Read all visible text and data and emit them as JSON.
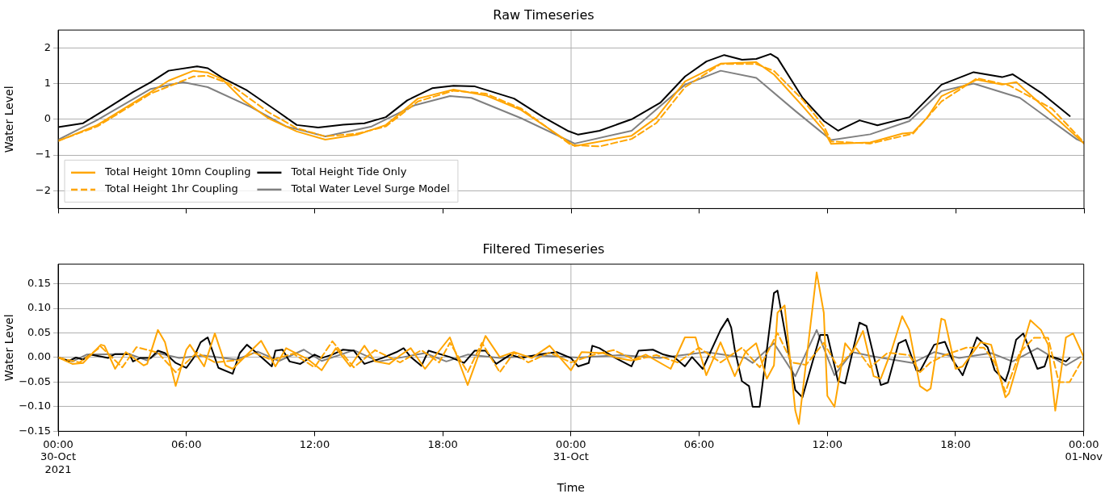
{
  "chart_data": [
    {
      "type": "line",
      "title": "Raw Timeseries",
      "ylabel": "Water Level",
      "xlim": [
        "2021-10-30T00:00",
        "2021-11-01T00:00"
      ],
      "ylim": [
        -2.5,
        2.5
      ],
      "xticks": [
        {
          "value": "2021-10-30T00:00",
          "label": null
        },
        {
          "value": "2021-10-30T06:00",
          "label": null
        },
        {
          "value": "2021-10-30T12:00",
          "label": null
        },
        {
          "value": "2021-10-30T18:00",
          "label": null
        },
        {
          "value": "2021-10-31T00:00",
          "label": null
        },
        {
          "value": "2021-10-31T06:00",
          "label": null
        },
        {
          "value": "2021-10-31T12:00",
          "label": null
        },
        {
          "value": "2021-10-31T18:00",
          "label": null
        },
        {
          "value": "2021-11-01T00:00",
          "label": null
        }
      ],
      "yticks": [
        {
          "value": -2,
          "label": "−2"
        },
        {
          "value": -1,
          "label": "−1"
        },
        0,
        1,
        2
      ],
      "tick_labels": "y",
      "grid": "y",
      "legend": "bottom left",
      "marker": "none",
      "ref_lines": [
        {
          "axis": "x",
          "value": "2021-10-31T00:00",
          "color": "#b0b0b0"
        }
      ],
      "series": [
        {
          "name": "Total Height 10mn Coupling",
          "color": "#ffa500",
          "line_style": "solid",
          "x": [
            "2021-10-30T00:00",
            "2021-10-30T01:50",
            "2021-10-30T04:20",
            "2021-10-30T05:10",
            "2021-10-30T06:20",
            "2021-10-30T07:00",
            "2021-10-30T07:40",
            "2021-10-30T08:40",
            "2021-10-30T09:50",
            "2021-10-30T11:10",
            "2021-10-30T12:30",
            "2021-10-30T14:00",
            "2021-10-30T15:20",
            "2021-10-30T16:50",
            "2021-10-30T18:30",
            "2021-10-30T20:00",
            "2021-10-30T21:40",
            "2021-10-31T00:10",
            "2021-10-31T02:50",
            "2021-10-31T04:00",
            "2021-10-31T05:20",
            "2021-10-31T07:00",
            "2021-10-31T08:40",
            "2021-10-31T09:30",
            "2021-10-31T10:50",
            "2021-10-31T11:50",
            "2021-10-31T12:10",
            "2021-10-31T14:00",
            "2021-10-31T15:30",
            "2021-10-31T16:00",
            "2021-10-31T16:40",
            "2021-10-31T17:20",
            "2021-10-31T19:00",
            "2021-10-31T20:10",
            "2021-10-31T20:50",
            "2021-10-31T22:30",
            "2021-11-01T00:00"
          ],
          "values": [
            -0.61,
            -0.16,
            0.76,
            1.08,
            1.36,
            1.31,
            1.13,
            0.53,
            0.03,
            -0.34,
            -0.57,
            -0.43,
            -0.16,
            0.58,
            0.83,
            0.67,
            0.26,
            -0.75,
            -0.46,
            0.05,
            1.06,
            1.56,
            1.6,
            1.25,
            0.37,
            -0.32,
            -0.69,
            -0.65,
            -0.4,
            -0.37,
            0.05,
            0.65,
            1.11,
            0.97,
            1.04,
            0.14,
            -0.68
          ]
        },
        {
          "name": "Total Height 1hr Coupling",
          "color": "#ffa500",
          "line_style": "dashed",
          "x": [
            "2021-10-30T00:00",
            "2021-10-30T01:50",
            "2021-10-30T04:20",
            "2021-10-30T06:20",
            "2021-10-30T07:00",
            "2021-10-30T08:00",
            "2021-10-30T09:50",
            "2021-10-30T11:10",
            "2021-10-30T12:30",
            "2021-10-30T14:00",
            "2021-10-30T15:20",
            "2021-10-30T16:50",
            "2021-10-30T18:30",
            "2021-10-30T20:00",
            "2021-10-30T21:40",
            "2021-10-31T00:00",
            "2021-10-31T01:20",
            "2021-10-31T02:50",
            "2021-10-31T04:00",
            "2021-10-31T05:20",
            "2021-10-31T07:00",
            "2021-10-31T08:40",
            "2021-10-31T09:30",
            "2021-10-31T10:50",
            "2021-10-31T11:50",
            "2021-10-31T12:10",
            "2021-10-31T14:00",
            "2021-10-31T16:00",
            "2021-10-31T17:20",
            "2021-10-31T19:00",
            "2021-10-31T20:30",
            "2021-10-31T22:30",
            "2021-11-01T00:00"
          ],
          "values": [
            -0.6,
            -0.2,
            0.72,
            1.2,
            1.22,
            1.0,
            0.2,
            -0.25,
            -0.48,
            -0.4,
            -0.2,
            0.5,
            0.8,
            0.72,
            0.3,
            -0.72,
            -0.76,
            -0.55,
            -0.1,
            0.9,
            1.55,
            1.55,
            1.35,
            0.55,
            -0.2,
            -0.62,
            -0.68,
            -0.4,
            0.5,
            1.15,
            0.95,
            0.3,
            -0.65
          ]
        },
        {
          "name": "Total Height Tide Only",
          "color": "#000000",
          "line_style": "solid",
          "x": [
            "2021-10-30T00:00",
            "2021-10-30T01:10",
            "2021-10-30T02:10",
            "2021-10-30T03:30",
            "2021-10-30T04:20",
            "2021-10-30T05:10",
            "2021-10-30T06:30",
            "2021-10-30T07:00",
            "2021-10-30T07:40",
            "2021-10-30T08:50",
            "2021-10-30T10:10",
            "2021-10-30T11:10",
            "2021-10-30T12:10",
            "2021-10-30T13:20",
            "2021-10-30T14:20",
            "2021-10-30T15:20",
            "2021-10-30T16:20",
            "2021-10-30T17:30",
            "2021-10-30T18:30",
            "2021-10-30T19:30",
            "2021-10-30T21:20",
            "2021-10-30T22:40",
            "2021-10-30T23:50",
            "2021-10-31T00:20",
            "2021-10-31T01:20",
            "2021-10-31T02:50",
            "2021-10-31T04:10",
            "2021-10-31T05:20",
            "2021-10-31T06:20",
            "2021-10-31T07:10",
            "2021-10-31T08:00",
            "2021-10-31T08:40",
            "2021-10-31T09:20",
            "2021-10-31T09:40",
            "2021-10-31T10:50",
            "2021-10-31T11:50",
            "2021-10-31T12:30",
            "2021-10-31T13:30",
            "2021-10-31T14:20",
            "2021-10-31T15:50",
            "2021-10-31T17:20",
            "2021-10-31T18:50",
            "2021-10-31T20:10",
            "2021-10-31T20:40",
            "2021-10-31T22:00",
            "2021-10-31T23:20"
          ],
          "values": [
            -0.22,
            -0.11,
            0.26,
            0.76,
            1.04,
            1.36,
            1.48,
            1.43,
            1.17,
            0.81,
            0.26,
            -0.16,
            -0.23,
            -0.15,
            -0.11,
            0.06,
            0.53,
            0.87,
            0.94,
            0.92,
            0.58,
            0.07,
            -0.32,
            -0.43,
            -0.32,
            0,
            0.46,
            1.2,
            1.62,
            1.8,
            1.67,
            1.69,
            1.83,
            1.71,
            0.6,
            -0.05,
            -0.32,
            -0.03,
            -0.17,
            0.06,
            0.97,
            1.32,
            1.18,
            1.26,
            0.74,
            0.09
          ]
        },
        {
          "name": "Total Water Level Surge Model",
          "color": "#808080",
          "line_style": "solid",
          "x": [
            "2021-10-30T00:00",
            "2021-10-30T01:50",
            "2021-10-30T04:20",
            "2021-10-30T05:50",
            "2021-10-30T07:00",
            "2021-10-30T09:00",
            "2021-10-30T10:40",
            "2021-10-30T12:30",
            "2021-10-30T14:40",
            "2021-10-30T16:40",
            "2021-10-30T18:20",
            "2021-10-30T19:20",
            "2021-10-30T21:40",
            "2021-10-31T00:10",
            "2021-10-31T02:50",
            "2021-10-31T05:20",
            "2021-10-31T07:00",
            "2021-10-31T08:40",
            "2021-10-31T10:30",
            "2021-10-31T12:10",
            "2021-10-31T14:00",
            "2021-10-31T15:50",
            "2021-10-31T17:20",
            "2021-10-31T18:50",
            "2021-10-31T21:00",
            "2021-10-31T23:40",
            "2021-11-01T00:00"
          ],
          "values": [
            -0.57,
            -0.02,
            0.85,
            1.04,
            0.9,
            0.35,
            -0.2,
            -0.48,
            -0.2,
            0.39,
            0.65,
            0.6,
            0.03,
            -0.68,
            -0.32,
            0.97,
            1.36,
            1.16,
            0.23,
            -0.58,
            -0.42,
            -0.05,
            0.79,
            1.0,
            0.6,
            -0.56,
            -0.65
          ]
        }
      ]
    },
    {
      "type": "line",
      "title": "Filtered Timeseries",
      "xlabel": "Time",
      "ylabel": "Water Level",
      "xlim": [
        "2021-10-30T00:00",
        "2021-11-01T00:00"
      ],
      "ylim": [
        -0.15,
        0.19
      ],
      "xticks": [
        {
          "value": "2021-10-30T00:00",
          "label": "00:00\n30-Oct\n2021"
        },
        {
          "value": "2021-10-30T06:00",
          "label": "06:00"
        },
        {
          "value": "2021-10-30T12:00",
          "label": "12:00"
        },
        {
          "value": "2021-10-30T18:00",
          "label": "18:00"
        },
        {
          "value": "2021-10-31T00:00",
          "label": "00:00\n31-Oct"
        },
        {
          "value": "2021-10-31T06:00",
          "label": "06:00"
        },
        {
          "value": "2021-10-31T12:00",
          "label": "12:00"
        },
        {
          "value": "2021-10-31T18:00",
          "label": "18:00"
        },
        {
          "value": "2021-11-01T00:00",
          "label": "00:00\n01-Nov"
        }
      ],
      "yticks": [
        {
          "value": -0.15,
          "label": "−0.15"
        },
        {
          "value": -0.1,
          "label": "−0.10"
        },
        {
          "value": -0.05,
          "label": "−0.05"
        },
        {
          "value": 0,
          "label": "0.00"
        },
        {
          "value": 0.05,
          "label": "0.05"
        },
        {
          "value": 0.1,
          "label": "0.10"
        },
        {
          "value": 0.15,
          "label": "0.15"
        }
      ],
      "grid": "y",
      "marker": "none",
      "ref_lines": [
        {
          "axis": "x",
          "value": "2021-10-31T00:00",
          "color": "#b0b0b0"
        }
      ],
      "series": [
        {
          "color": "#ffa500",
          "line_style": "solid",
          "x": [
            "2021-10-30T00:00",
            "2021-10-30T00:40",
            "2021-10-30T01:10",
            "2021-10-30T02:00",
            "2021-10-30T02:10",
            "2021-10-30T02:40",
            "2021-10-30T03:10",
            "2021-10-30T04:00",
            "2021-10-30T04:10",
            "2021-10-30T04:40",
            "2021-10-30T05:00",
            "2021-10-30T05:30",
            "2021-10-30T06:00",
            "2021-10-30T06:10",
            "2021-10-30T06:50",
            "2021-10-30T07:20",
            "2021-10-30T07:50",
            "2021-10-30T08:10",
            "2021-10-30T09:30",
            "2021-10-30T10:10",
            "2021-10-30T10:40",
            "2021-10-30T11:40",
            "2021-10-30T12:20",
            "2021-10-30T13:00",
            "2021-10-30T13:40",
            "2021-10-30T14:20",
            "2021-10-30T14:50",
            "2021-10-30T15:30",
            "2021-10-30T16:00",
            "2021-10-30T16:30",
            "2021-10-30T17:10",
            "2021-10-30T18:20",
            "2021-10-30T19:10",
            "2021-10-30T20:00",
            "2021-10-30T20:40",
            "2021-10-30T21:20",
            "2021-10-30T22:10",
            "2021-10-30T23:00",
            "2021-10-31T00:00",
            "2021-10-31T00:30",
            "2021-10-31T01:30",
            "2021-10-31T02:10",
            "2021-10-31T02:50",
            "2021-10-31T03:30",
            "2021-10-31T04:40",
            "2021-10-31T05:20",
            "2021-10-31T05:50",
            "2021-10-31T06:20",
            "2021-10-31T07:00",
            "2021-10-31T07:40",
            "2021-10-31T08:10",
            "2021-10-31T08:40",
            "2021-10-31T09:10",
            "2021-10-31T09:30",
            "2021-10-31T09:40",
            "2021-10-31T10:00",
            "2021-10-31T10:30",
            "2021-10-31T10:40",
            "2021-10-31T11:30",
            "2021-10-31T11:50",
            "2021-10-31T12:00",
            "2021-10-31T12:20",
            "2021-10-31T12:50",
            "2021-10-31T13:10",
            "2021-10-31T13:40",
            "2021-10-31T14:10",
            "2021-10-31T14:30",
            "2021-10-31T15:00",
            "2021-10-31T15:30",
            "2021-10-31T15:50",
            "2021-10-31T16:20",
            "2021-10-31T16:40",
            "2021-10-31T16:50",
            "2021-10-31T17:20",
            "2021-10-31T17:30",
            "2021-10-31T18:00",
            "2021-10-31T18:20",
            "2021-10-31T19:10",
            "2021-10-31T19:40",
            "2021-10-31T20:20",
            "2021-10-31T20:30",
            "2021-10-31T21:30",
            "2021-10-31T22:00",
            "2021-10-31T22:20",
            "2021-10-31T22:40",
            "2021-10-31T23:10",
            "2021-10-31T23:30",
            "2021-11-01T00:00"
          ],
          "values": [
            0,
            -0.013,
            -0.011,
            0.026,
            0.024,
            -0.023,
            0.011,
            -0.016,
            -0.013,
            0.056,
            0.031,
            -0.058,
            0.016,
            0.026,
            -0.018,
            0.049,
            -0.016,
            -0.023,
            0.034,
            -0.018,
            0.019,
            -0.003,
            -0.026,
            0.019,
            -0.018,
            0.024,
            -0.008,
            -0.013,
            0.004,
            0.019,
            -0.023,
            0.041,
            -0.056,
            0.044,
            0.001,
            0.011,
            -0.001,
            0.024,
            -0.026,
            0.011,
            0.009,
            -0.001,
            -0.006,
            0.006,
            -0.023,
            0.041,
            0.041,
            -0.036,
            0.031,
            -0.038,
            0.011,
            0.029,
            -0.043,
            -0.016,
            0.091,
            0.106,
            -0.108,
            -0.135,
            0.173,
            0.091,
            -0.078,
            -0.1,
            0.029,
            0.011,
            0.054,
            -0.038,
            -0.043,
            0.014,
            0.084,
            0.056,
            -0.058,
            -0.068,
            -0.063,
            0.079,
            0.076,
            -0.023,
            -0.018,
            0.031,
            0.026,
            -0.081,
            -0.073,
            0.076,
            0.056,
            0.026,
            -0.108,
            0.041,
            0.049,
            0.001
          ]
        },
        {
          "color": "#ffa500",
          "line_style": "dashed",
          "x": [
            "2021-10-30T00:00",
            "2021-10-30T01:00",
            "2021-10-30T02:00",
            "2021-10-30T03:00",
            "2021-10-30T03:40",
            "2021-10-30T04:40",
            "2021-10-30T05:30",
            "2021-10-30T06:30",
            "2021-10-30T07:20",
            "2021-10-30T08:30",
            "2021-10-30T09:10",
            "2021-10-30T10:00",
            "2021-10-30T11:00",
            "2021-10-30T12:00",
            "2021-10-30T12:50",
            "2021-10-30T13:50",
            "2021-10-30T14:50",
            "2021-10-30T16:00",
            "2021-10-30T17:00",
            "2021-10-30T17:50",
            "2021-10-30T18:20",
            "2021-10-30T19:10",
            "2021-10-30T19:50",
            "2021-10-30T20:40",
            "2021-10-30T21:20",
            "2021-10-30T22:00",
            "2021-10-30T23:00",
            "2021-10-31T00:00",
            "2021-10-31T01:00",
            "2021-10-31T02:00",
            "2021-10-31T03:00",
            "2021-10-31T04:00",
            "2021-10-31T05:00",
            "2021-10-31T06:00",
            "2021-10-31T07:00",
            "2021-10-31T08:00",
            "2021-10-31T08:50",
            "2021-10-31T09:40",
            "2021-10-31T10:20",
            "2021-10-31T11:00",
            "2021-10-31T11:50",
            "2021-10-31T12:30",
            "2021-10-31T13:20",
            "2021-10-31T14:00",
            "2021-10-31T14:50",
            "2021-10-31T15:50",
            "2021-10-31T16:20",
            "2021-10-31T16:50",
            "2021-10-31T17:30",
            "2021-10-31T18:30",
            "2021-10-31T19:20",
            "2021-10-31T19:50",
            "2021-10-31T20:20",
            "2021-10-31T21:00",
            "2021-10-31T21:40",
            "2021-10-31T22:20",
            "2021-10-31T22:40",
            "2021-10-31T22:50",
            "2021-10-31T23:20",
            "2021-11-01T00:00"
          ],
          "values": [
            0,
            -0.01,
            0.022,
            -0.02,
            0.021,
            0.01,
            -0.03,
            0.01,
            -0.01,
            -0.005,
            0.01,
            -0.005,
            0.008,
            -0.02,
            0.033,
            -0.02,
            0.015,
            -0.01,
            0.015,
            -0.01,
            0.03,
            -0.03,
            0.03,
            -0.03,
            0.01,
            -0.01,
            0.01,
            -0.01,
            0.005,
            0.015,
            -0.005,
            0.005,
            -0.01,
            0.02,
            -0.01,
            0.02,
            -0.02,
            0.05,
            -0.01,
            -0.015,
            0.03,
            -0.02,
            0.02,
            -0.02,
            0.01,
            0.005,
            -0.03,
            -0.01,
            0.005,
            0.02,
            0.02,
            -0.01,
            -0.07,
            0.01,
            0.04,
            0.04,
            -0.02,
            -0.05,
            -0.05,
            0
          ]
        },
        {
          "color": "#000000",
          "line_style": "solid",
          "x": [
            "2021-10-30T00:00",
            "2021-10-30T00:30",
            "2021-10-30T00:50",
            "2021-10-30T01:10",
            "2021-10-30T01:30",
            "2021-10-30T02:00",
            "2021-10-30T02:20",
            "2021-10-30T02:40",
            "2021-10-30T03:20",
            "2021-10-30T03:30",
            "2021-10-30T03:50",
            "2021-10-30T04:20",
            "2021-10-30T04:40",
            "2021-10-30T05:00",
            "2021-10-30T05:30",
            "2021-10-30T06:00",
            "2021-10-30T06:20",
            "2021-10-30T06:40",
            "2021-10-30T07:00",
            "2021-10-30T07:30",
            "2021-10-30T08:10",
            "2021-10-30T08:30",
            "2021-10-30T08:50",
            "2021-10-30T09:10",
            "2021-10-30T10:00",
            "2021-10-30T10:10",
            "2021-10-30T10:30",
            "2021-10-30T10:50",
            "2021-10-30T11:20",
            "2021-10-30T12:00",
            "2021-10-30T12:20",
            "2021-10-30T12:50",
            "2021-10-30T13:20",
            "2021-10-30T13:50",
            "2021-10-30T14:20",
            "2021-10-30T14:40",
            "2021-10-30T15:10",
            "2021-10-30T15:50",
            "2021-10-30T16:10",
            "2021-10-30T16:30",
            "2021-10-30T17:00",
            "2021-10-30T17:20",
            "2021-10-30T18:20",
            "2021-10-30T19:00",
            "2021-10-30T19:30",
            "2021-10-30T20:00",
            "2021-10-30T20:30",
            "2021-10-30T21:10",
            "2021-10-30T21:40",
            "2021-10-30T22:30",
            "2021-10-30T23:20",
            "2021-10-31T00:00",
            "2021-10-31T00:20",
            "2021-10-31T00:50",
            "2021-10-31T01:00",
            "2021-10-31T01:20",
            "2021-10-31T02:00",
            "2021-10-31T02:50",
            "2021-10-31T03:10",
            "2021-10-31T03:50",
            "2021-10-31T04:20",
            "2021-10-31T04:50",
            "2021-10-31T05:20",
            "2021-10-31T05:40",
            "2021-10-31T06:10",
            "2021-10-31T07:00",
            "2021-10-31T07:20",
            "2021-10-31T07:30",
            "2021-10-31T07:40",
            "2021-10-31T08:00",
            "2021-10-31T08:20",
            "2021-10-31T08:30",
            "2021-10-31T08:50",
            "2021-10-31T09:30",
            "2021-10-31T09:40",
            "2021-10-31T10:30",
            "2021-10-31T10:50",
            "2021-10-31T11:40",
            "2021-10-31T12:00",
            "2021-10-31T12:30",
            "2021-10-31T12:50",
            "2021-10-31T13:30",
            "2021-10-31T13:50",
            "2021-10-31T14:30",
            "2021-10-31T14:50",
            "2021-10-31T15:20",
            "2021-10-31T15:40",
            "2021-10-31T16:10",
            "2021-10-31T16:20",
            "2021-10-31T17:00",
            "2021-10-31T17:30",
            "2021-10-31T17:50",
            "2021-10-31T18:20",
            "2021-10-31T19:00",
            "2021-10-31T19:30",
            "2021-10-31T19:50",
            "2021-10-31T20:20",
            "2021-10-31T20:30",
            "2021-10-31T20:50",
            "2021-10-31T21:10",
            "2021-10-31T21:50",
            "2021-10-31T22:10",
            "2021-10-31T22:20",
            "2021-10-31T22:50",
            "2021-10-31T23:10",
            "2021-10-31T23:20"
          ],
          "values": [
            0,
            -0.007,
            0,
            -0.004,
            0.006,
            0.002,
            -0.001,
            0.007,
            0.007,
            -0.008,
            -0.001,
            -0.001,
            0.014,
            0.009,
            -0.011,
            -0.021,
            -0.001,
            0.031,
            0.041,
            -0.021,
            -0.033,
            0.009,
            0.026,
            0.014,
            -0.018,
            0.014,
            0.016,
            -0.008,
            -0.013,
            0.006,
            -0.001,
            0.006,
            0.016,
            0.014,
            -0.013,
            -0.008,
            -0.001,
            0.011,
            0.019,
            0.001,
            -0.017,
            0.014,
            0.001,
            -0.011,
            0.014,
            0.014,
            -0.013,
            0.006,
            -0.001,
            0.006,
            0.011,
            -0.001,
            -0.018,
            -0.011,
            0.024,
            0.019,
            0.001,
            -0.018,
            0.014,
            0.016,
            0.006,
            0.001,
            -0.018,
            0.001,
            -0.023,
            0.056,
            0.079,
            0.061,
            0.016,
            -0.048,
            -0.058,
            -0.1,
            -0.1,
            0.131,
            0.136,
            -0.066,
            -0.081,
            0.046,
            0.046,
            -0.048,
            -0.053,
            0.071,
            0.064,
            -0.056,
            -0.051,
            0.029,
            0.036,
            -0.026,
            -0.028,
            0.026,
            0.032,
            -0.003,
            -0.036,
            0.041,
            0.021,
            -0.026,
            -0.048,
            -0.026,
            0.036,
            0.049,
            -0.023,
            -0.018,
            0.004,
            -0.003,
            -0.008,
            -0.001
          ]
        },
        {
          "color": "#808080",
          "line_style": "solid",
          "x": [
            "2021-10-30T00:00",
            "2021-10-30T00:40",
            "2021-10-30T01:20",
            "2021-10-30T03:20",
            "2021-10-30T04:10",
            "2021-10-30T04:40",
            "2021-10-30T05:40",
            "2021-10-30T06:50",
            "2021-10-30T08:20",
            "2021-10-30T09:20",
            "2021-10-30T10:20",
            "2021-10-30T11:30",
            "2021-10-30T12:20",
            "2021-10-30T13:50",
            "2021-10-30T15:00",
            "2021-10-30T16:10",
            "2021-10-30T17:10",
            "2021-10-30T18:10",
            "2021-10-30T19:10",
            "2021-10-30T20:40",
            "2021-10-30T22:30",
            "2021-10-31T00:20",
            "2021-10-31T02:20",
            "2021-10-31T04:10",
            "2021-10-31T06:20",
            "2021-10-31T08:10",
            "2021-10-31T08:30",
            "2021-10-31T09:30",
            "2021-10-31T10:30",
            "2021-10-31T11:30",
            "2021-10-31T12:20",
            "2021-10-31T13:10",
            "2021-10-31T14:10",
            "2021-10-31T16:00",
            "2021-10-31T17:00",
            "2021-10-31T18:10",
            "2021-10-31T19:40",
            "2021-10-31T20:40",
            "2021-10-31T21:50",
            "2021-10-31T23:10",
            "2021-10-31T23:50"
          ],
          "values": [
            0,
            -0.008,
            0.006,
            0.007,
            -0.006,
            0.009,
            -0.001,
            0.004,
            -0.004,
            0.012,
            -0.007,
            0.016,
            -0.007,
            0.015,
            -0.008,
            0.001,
            0.009,
            -0.008,
            0.006,
            -0.001,
            0.004,
            0,
            0.005,
            -0.001,
            0.011,
            -0.001,
            -0.011,
            0.029,
            -0.038,
            0.056,
            -0.036,
            0.011,
            0.002,
            -0.011,
            0.011,
            -0.001,
            0.009,
            -0.008,
            0.019,
            -0.016,
            0.001
          ]
        }
      ]
    }
  ]
}
